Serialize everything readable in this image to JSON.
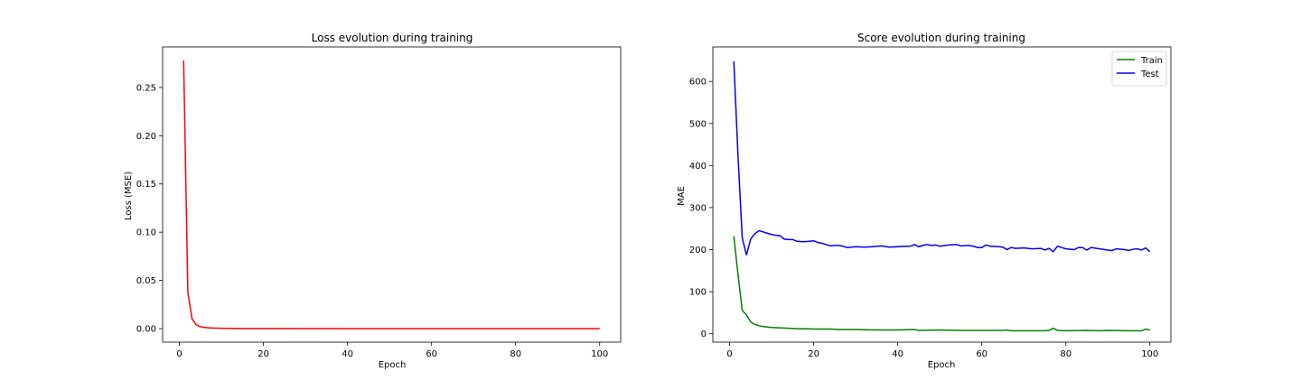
{
  "chart_data": [
    {
      "type": "line",
      "title": "Loss evolution during training",
      "xlabel": "Epoch",
      "ylabel": "Loss (MSE)",
      "xlim": [
        -4,
        105
      ],
      "ylim": [
        -0.014,
        0.292
      ],
      "xticks": [
        0,
        20,
        40,
        60,
        80,
        100
      ],
      "yticks": [
        0.0,
        0.05,
        0.1,
        0.15,
        0.2,
        0.25
      ],
      "ytick_labels": [
        "0.00",
        "0.05",
        "0.10",
        "0.15",
        "0.20",
        "0.25"
      ],
      "grid": false,
      "legend": null,
      "series": [
        {
          "color": "#ff0000",
          "points": [
            [
              1,
              0.278
            ],
            [
              2,
              0.038
            ],
            [
              3,
              0.01
            ],
            [
              4,
              0.004
            ],
            [
              5,
              0.002
            ],
            [
              6,
              0.0012
            ],
            [
              7,
              0.0008
            ],
            [
              8,
              0.0006
            ],
            [
              10,
              0.0004
            ],
            [
              15,
              0.0002
            ],
            [
              20,
              0.0001
            ],
            [
              100,
              0.0
            ]
          ]
        }
      ]
    },
    {
      "type": "line",
      "title": "Score evolution during training",
      "xlabel": "Epoch",
      "ylabel": "MAE",
      "xlim": [
        -4,
        105
      ],
      "ylim": [
        -20,
        682
      ],
      "xticks": [
        0,
        20,
        40,
        60,
        80,
        100
      ],
      "yticks": [
        0,
        100,
        200,
        300,
        400,
        500,
        600
      ],
      "ytick_labels": [
        "0",
        "100",
        "200",
        "300",
        "400",
        "500",
        "600"
      ],
      "grid": false,
      "legend": "top-right",
      "series": [
        {
          "name": "Train",
          "color": "#008000",
          "points": [
            [
              1,
              232
            ],
            [
              2,
              140
            ],
            [
              3,
              55
            ],
            [
              4,
              45
            ],
            [
              5,
              28
            ],
            [
              6,
              22
            ],
            [
              7,
              19
            ],
            [
              8,
              17
            ],
            [
              9,
              16
            ],
            [
              10,
              15
            ],
            [
              12,
              14
            ],
            [
              14,
              13
            ],
            [
              16,
              12
            ],
            [
              18,
              12
            ],
            [
              20,
              11
            ],
            [
              24,
              11
            ],
            [
              26,
              10
            ],
            [
              30,
              10
            ],
            [
              35,
              9
            ],
            [
              40,
              9
            ],
            [
              44,
              10
            ],
            [
              45,
              8
            ],
            [
              50,
              9
            ],
            [
              55,
              8
            ],
            [
              60,
              8
            ],
            [
              65,
              8
            ],
            [
              66,
              9
            ],
            [
              67,
              7
            ],
            [
              70,
              7
            ],
            [
              75,
              7
            ],
            [
              76,
              8
            ],
            [
              77,
              13
            ],
            [
              78,
              8
            ],
            [
              80,
              7
            ],
            [
              85,
              8
            ],
            [
              88,
              7
            ],
            [
              90,
              8
            ],
            [
              95,
              7
            ],
            [
              98,
              7
            ],
            [
              99,
              11
            ],
            [
              100,
              9
            ]
          ]
        },
        {
          "name": "Test",
          "color": "#0000ff",
          "points": [
            [
              1,
              648
            ],
            [
              2,
              420
            ],
            [
              3,
              228
            ],
            [
              4,
              187
            ],
            [
              5,
              225
            ],
            [
              6,
              238
            ],
            [
              7,
              245
            ],
            [
              8,
              242
            ],
            [
              9,
              239
            ],
            [
              10,
              236
            ],
            [
              11,
              234
            ],
            [
              12,
              233
            ],
            [
              13,
              225
            ],
            [
              14,
              224
            ],
            [
              15,
              224
            ],
            [
              16,
              220
            ],
            [
              17,
              219
            ],
            [
              18,
              219
            ],
            [
              19,
              220
            ],
            [
              20,
              221
            ],
            [
              21,
              217
            ],
            [
              22,
              215
            ],
            [
              23,
              212
            ],
            [
              24,
              209
            ],
            [
              25,
              210
            ],
            [
              26,
              210
            ],
            [
              27,
              208
            ],
            [
              28,
              205
            ],
            [
              29,
              206
            ],
            [
              30,
              207
            ],
            [
              32,
              206
            ],
            [
              34,
              207
            ],
            [
              36,
              209
            ],
            [
              38,
              206
            ],
            [
              40,
              207
            ],
            [
              42,
              208
            ],
            [
              43,
              208
            ],
            [
              44,
              212
            ],
            [
              45,
              207
            ],
            [
              46,
              210
            ],
            [
              47,
              212
            ],
            [
              48,
              210
            ],
            [
              49,
              211
            ],
            [
              50,
              208
            ],
            [
              52,
              211
            ],
            [
              54,
              212
            ],
            [
              55,
              209
            ],
            [
              57,
              210
            ],
            [
              58,
              208
            ],
            [
              59,
              205
            ],
            [
              60,
              205
            ],
            [
              61,
              211
            ],
            [
              62,
              208
            ],
            [
              64,
              207
            ],
            [
              65,
              206
            ],
            [
              66,
              200
            ],
            [
              67,
              205
            ],
            [
              68,
              203
            ],
            [
              70,
              204
            ],
            [
              72,
              202
            ],
            [
              74,
              203
            ],
            [
              75,
              199
            ],
            [
              76,
              203
            ],
            [
              77,
              195
            ],
            [
              78,
              208
            ],
            [
              79,
              205
            ],
            [
              80,
              202
            ],
            [
              82,
              200
            ],
            [
              83,
              205
            ],
            [
              84,
              205
            ],
            [
              85,
              199
            ],
            [
              86,
              205
            ],
            [
              88,
              202
            ],
            [
              90,
              199
            ],
            [
              91,
              198
            ],
            [
              92,
              202
            ],
            [
              94,
              200
            ],
            [
              95,
              198
            ],
            [
              96,
              201
            ],
            [
              97,
              202
            ],
            [
              98,
              199
            ],
            [
              99,
              204
            ],
            [
              100,
              195
            ]
          ]
        }
      ]
    }
  ]
}
